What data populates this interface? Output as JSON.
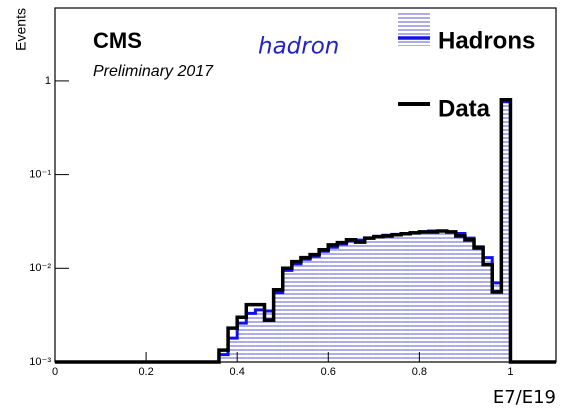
{
  "chart_data": {
    "type": "histogram",
    "title": "CMS",
    "subtitle": "Preliminary 2017",
    "annotation": "hadron",
    "ylabel": "Events",
    "xlabel": "E7/E19",
    "bins": [
      0,
      0.36,
      0.38,
      0.4,
      0.42,
      0.44,
      0.46,
      0.48,
      0.5,
      0.52,
      0.54,
      0.56,
      0.58,
      0.6,
      0.62,
      0.64,
      0.66,
      0.68,
      0.7,
      0.72,
      0.74,
      0.76,
      0.78,
      0.8,
      0.82,
      0.84,
      0.86,
      0.88,
      0.9,
      0.92,
      0.94,
      0.96,
      0.98,
      1.0,
      1.1
    ],
    "series": [
      {
        "name": "Hadrons",
        "color": "#1010ee",
        "hatch": true,
        "values": [
          0.001,
          0.0012,
          0.0018,
          0.0026,
          0.0033,
          0.0036,
          0.0035,
          0.0055,
          0.0095,
          0.0112,
          0.0125,
          0.0135,
          0.0152,
          0.0168,
          0.0182,
          0.0195,
          0.02,
          0.021,
          0.022,
          0.0225,
          0.023,
          0.0235,
          0.024,
          0.0245,
          0.025,
          0.025,
          0.0245,
          0.0235,
          0.021,
          0.017,
          0.013,
          0.007,
          0.6,
          0.001
        ]
      },
      {
        "name": "Data",
        "color": "#000000",
        "hatch": false,
        "values": [
          0.001,
          0.00134,
          0.0023,
          0.003,
          0.0041,
          0.0041,
          0.0028,
          0.0059,
          0.01,
          0.0118,
          0.013,
          0.014,
          0.0158,
          0.0178,
          0.0188,
          0.0202,
          0.019,
          0.021,
          0.0217,
          0.0222,
          0.0228,
          0.0234,
          0.0239,
          0.0245,
          0.0245,
          0.025,
          0.0245,
          0.0222,
          0.0202,
          0.0165,
          0.0109,
          0.0056,
          0.63,
          0.001
        ]
      }
    ],
    "xlim": [
      0,
      1.1
    ],
    "xticks": [
      0,
      0.2,
      0.4,
      0.6,
      0.8,
      1
    ],
    "ylim": [
      0.001,
      6
    ],
    "log_y": true,
    "yticks": [
      {
        "value": 0.001,
        "label": "10⁻³"
      },
      {
        "value": 0.01,
        "label": "10⁻²"
      },
      {
        "value": 0.1,
        "label": "10⁻¹"
      },
      1
    ],
    "legend": "upper right"
  }
}
